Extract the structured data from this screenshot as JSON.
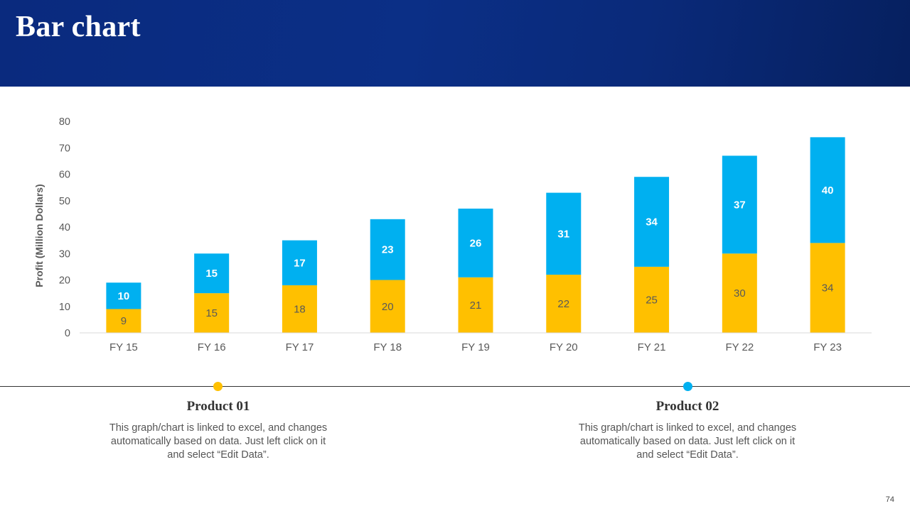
{
  "slide": {
    "title": "Bar chart",
    "page_number": "74"
  },
  "colors": {
    "product01": "#FFC000",
    "product02": "#00B0F0",
    "header": "#0B2C80"
  },
  "chart_data": {
    "type": "bar",
    "stacked": true,
    "categories": [
      "FY 15",
      "FY 16",
      "FY 17",
      "FY 18",
      "FY 19",
      "FY 20",
      "FY 21",
      "FY 22",
      "FY 23"
    ],
    "series": [
      {
        "name": "Product 01",
        "values": [
          9,
          15,
          18,
          20,
          21,
          22,
          25,
          30,
          34
        ]
      },
      {
        "name": "Product 02",
        "values": [
          10,
          15,
          17,
          23,
          26,
          31,
          34,
          37,
          40
        ]
      }
    ],
    "ylabel": "Profit  (Million Dollars)",
    "ylim": [
      0,
      80
    ],
    "yticks": [
      0,
      10,
      20,
      30,
      40,
      50,
      60,
      70,
      80
    ],
    "legend": "none"
  },
  "products": [
    {
      "name": "Product 01",
      "text": "This graph/chart is linked to excel, and changes automatically based on data. Just left click on it and select “Edit Data”."
    },
    {
      "name": "Product 02",
      "text": "This graph/chart is linked to excel, and changes automatically based on data. Just left click on it and select “Edit Data”."
    }
  ]
}
